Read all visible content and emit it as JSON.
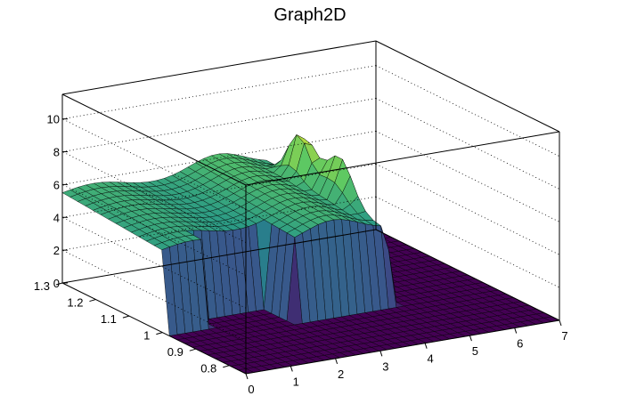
{
  "chart_data": {
    "type": "surface",
    "title": "Graph2D",
    "x_axis": {
      "range": [
        0,
        7
      ],
      "ticks": [
        "0",
        "1",
        "2",
        "3",
        "4",
        "5",
        "6",
        "7"
      ]
    },
    "y_axis": {
      "range": [
        0.75,
        1.3
      ],
      "ticks": [
        "0.8",
        "0.9",
        "1",
        "1.1",
        "1.2",
        "1.3"
      ]
    },
    "z_axis": {
      "range": [
        0,
        11.5
      ],
      "ticks": [
        "0",
        "2",
        "4",
        "6",
        "8",
        "10"
      ]
    },
    "grid": true,
    "palette": "viridis",
    "surface_description_points": [
      {
        "x": 0.0,
        "y": 0.8,
        "z": 0.0
      },
      {
        "x": 1.0,
        "y": 0.8,
        "z": 0.0
      },
      {
        "x": 1.0,
        "y": 1.0,
        "z": 4.5
      },
      {
        "x": 2.5,
        "y": 1.0,
        "z": 5.2
      },
      {
        "x": 2.5,
        "y": 1.0,
        "z": 0.0
      },
      {
        "x": 4.3,
        "y": 1.0,
        "z": 6.5
      },
      {
        "x": 4.4,
        "y": 1.2,
        "z": 8.5
      },
      {
        "x": 4.6,
        "y": 1.1,
        "z": 7.0
      },
      {
        "x": 5.0,
        "y": 1.0,
        "z": 0.0
      },
      {
        "x": 7.0,
        "y": 1.0,
        "z": 0.0
      },
      {
        "x": 0.0,
        "y": 1.3,
        "z": 5.2
      },
      {
        "x": 4.0,
        "y": 1.3,
        "z": 6.0
      }
    ]
  }
}
